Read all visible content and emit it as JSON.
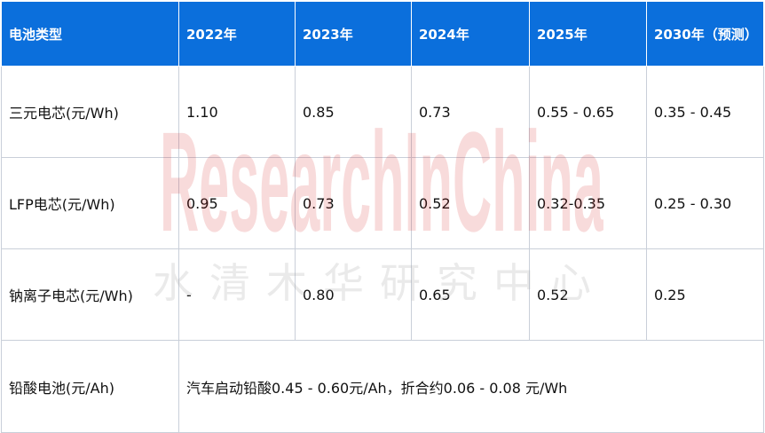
{
  "table": {
    "headers": [
      "电池类型",
      "2022年",
      "2023年",
      "2024年",
      "2025年",
      "2030年（预测）"
    ],
    "rows": [
      [
        "三元电芯(元/Wh)",
        "1.10",
        "0.85",
        "0.73",
        "0.55 - 0.65",
        "0.35 - 0.45"
      ],
      [
        "LFP电芯(元/Wh)",
        "0.95",
        "0.73",
        "0.52",
        "0.32-0.35",
        "0.25 - 0.30"
      ],
      [
        "钠离子电芯(元/Wh)",
        "-",
        "0.80",
        "0.65",
        "0.52",
        "0.25"
      ]
    ],
    "last_row": {
      "label": "铅酸电池(元/Ah)",
      "value": "汽车启动铅酸0.45 - 0.60元/Ah，折合约0.06 - 0.08 元/Wh"
    }
  },
  "watermark": {
    "en": "ResearchInChina",
    "cn": "水清木华研究中心"
  },
  "colors": {
    "header_bg": "#0b6fdc",
    "header_text": "#ffffff",
    "border": "#c9cfd9",
    "watermark_en": "#d32020"
  }
}
